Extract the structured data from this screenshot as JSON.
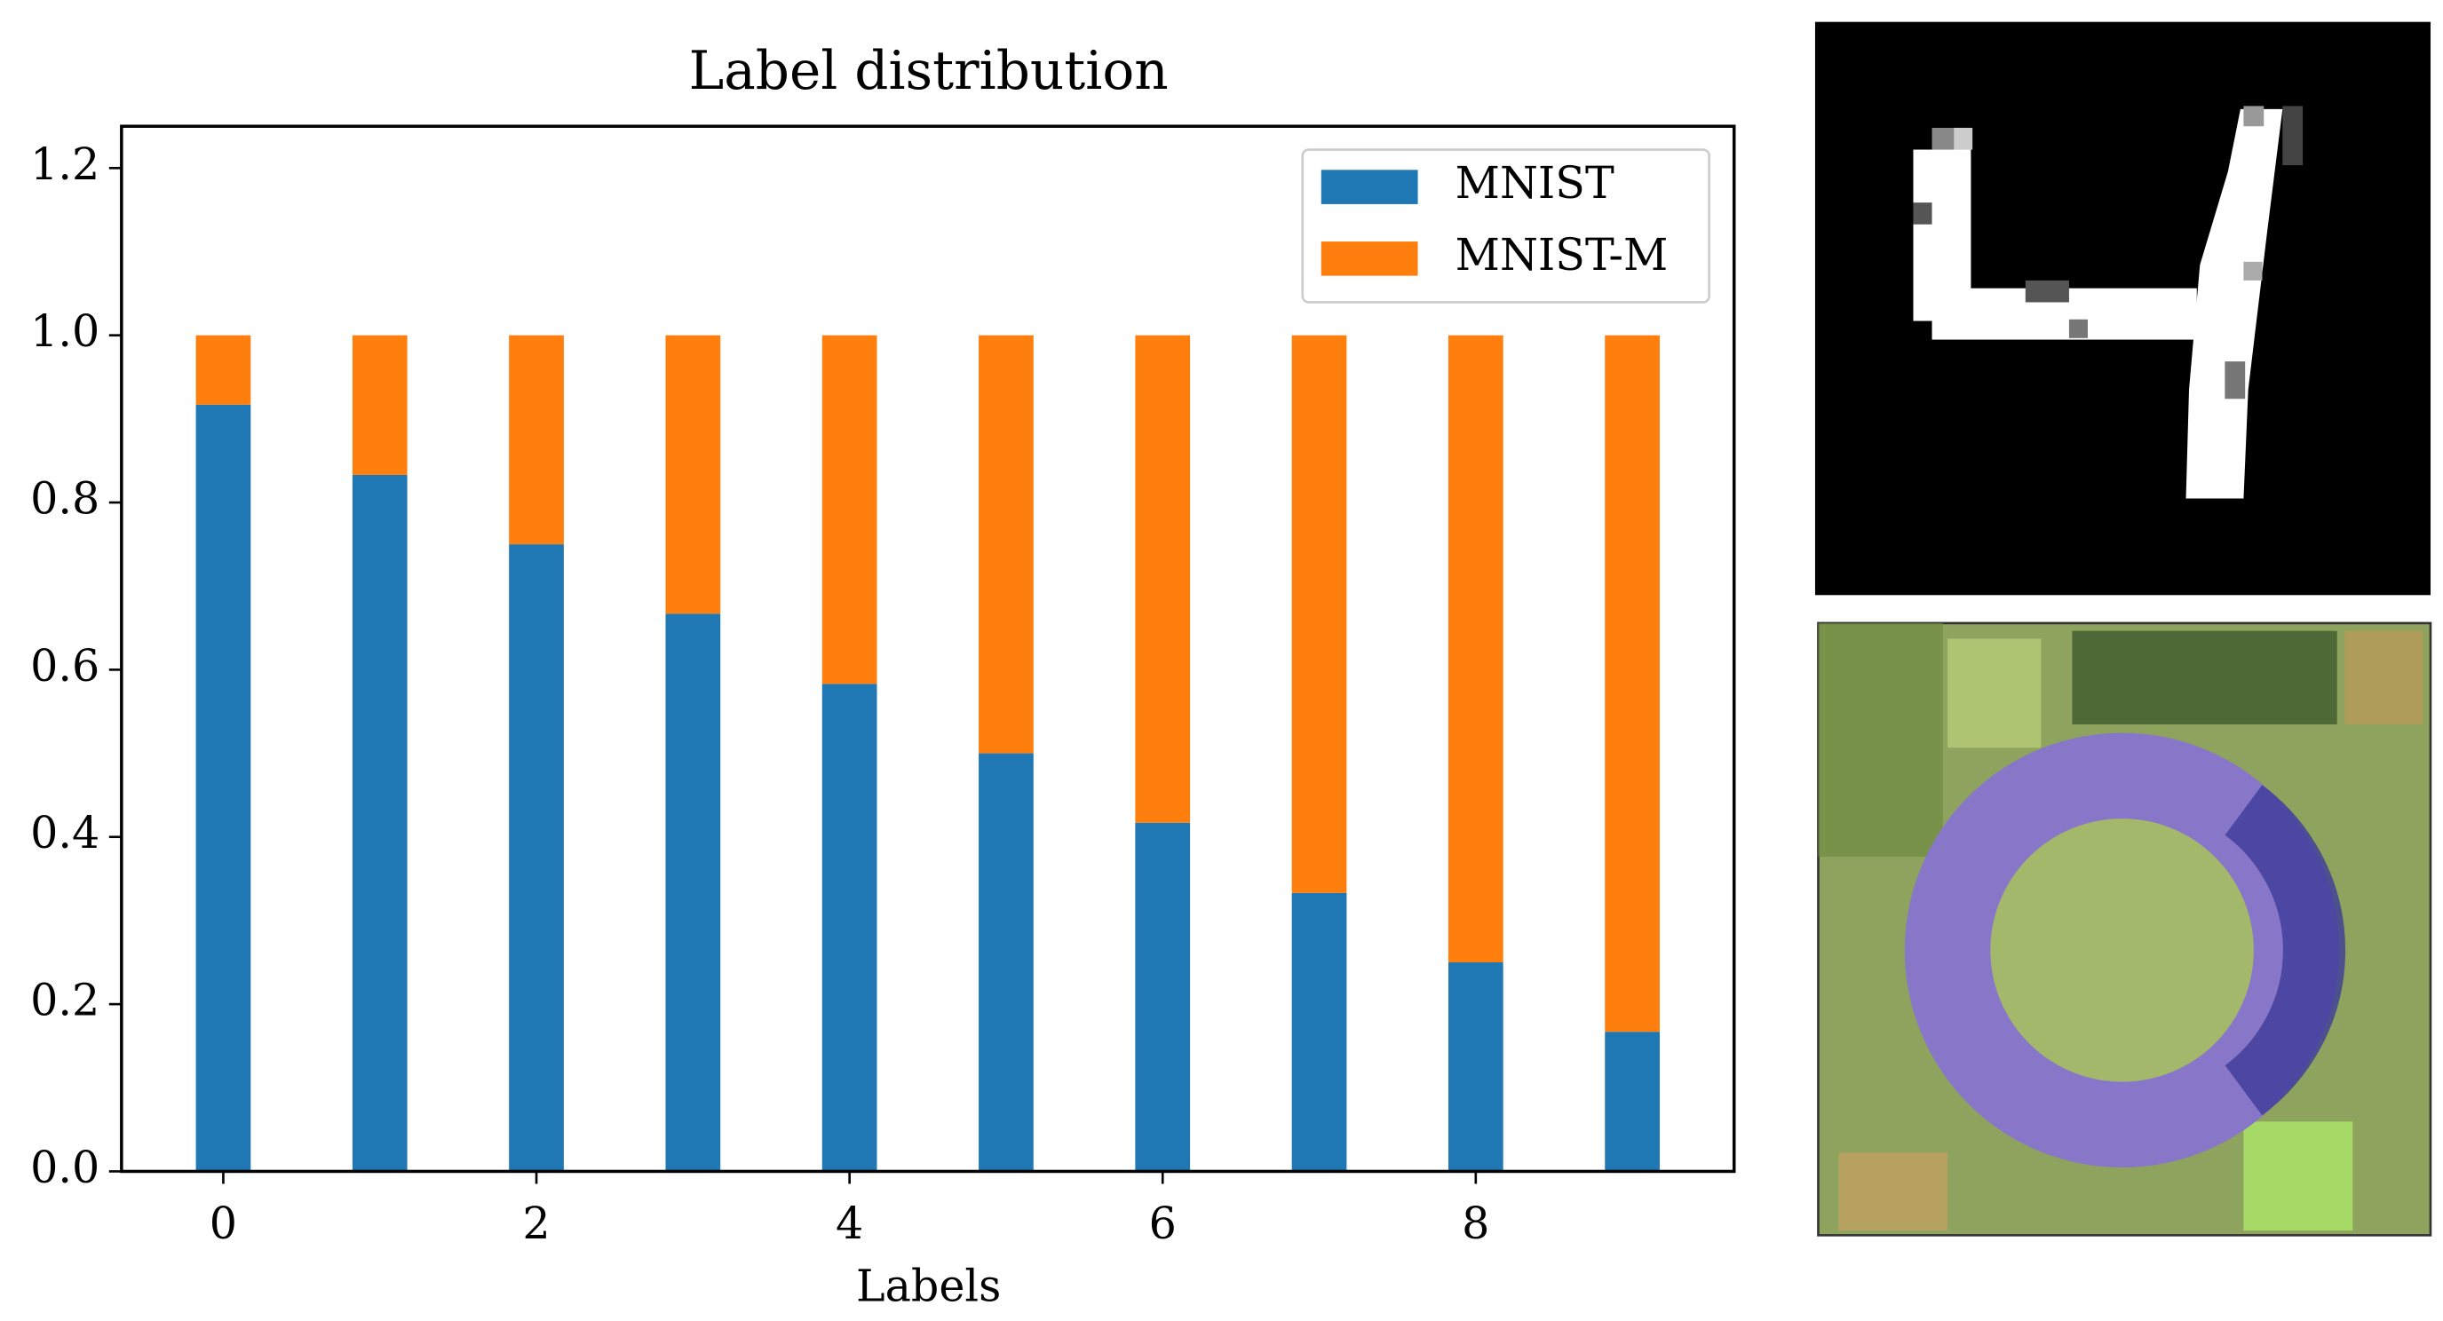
{
  "chart_data": {
    "type": "stacked_bar",
    "title": "Label distribution",
    "x_label": "Labels",
    "x": [
      0,
      1,
      2,
      3,
      4,
      5,
      6,
      7,
      8,
      9
    ],
    "series": [
      {
        "name": "MNIST",
        "color": "#1f77b4",
        "values": [
          0.917,
          0.833,
          0.75,
          0.667,
          0.583,
          0.5,
          0.417,
          0.333,
          0.25,
          0.167
        ]
      },
      {
        "name": "MNIST-M",
        "color": "#ff7f0e",
        "values": [
          0.083,
          0.167,
          0.25,
          0.333,
          0.417,
          0.5,
          0.583,
          0.667,
          0.75,
          0.833
        ]
      }
    ],
    "bar_width": 0.35,
    "xlim": [
      -0.65,
      9.65
    ],
    "xticks": [
      0,
      2,
      4,
      6,
      8
    ],
    "ylim": [
      0,
      1.25
    ],
    "yticks": [
      {
        "value": 0,
        "label": "0.0"
      },
      0.2,
      0.4,
      0.6,
      0.8,
      {
        "value": 1,
        "label": "1.0"
      },
      1.2
    ],
    "legend": "upper right",
    "grid": false
  }
}
